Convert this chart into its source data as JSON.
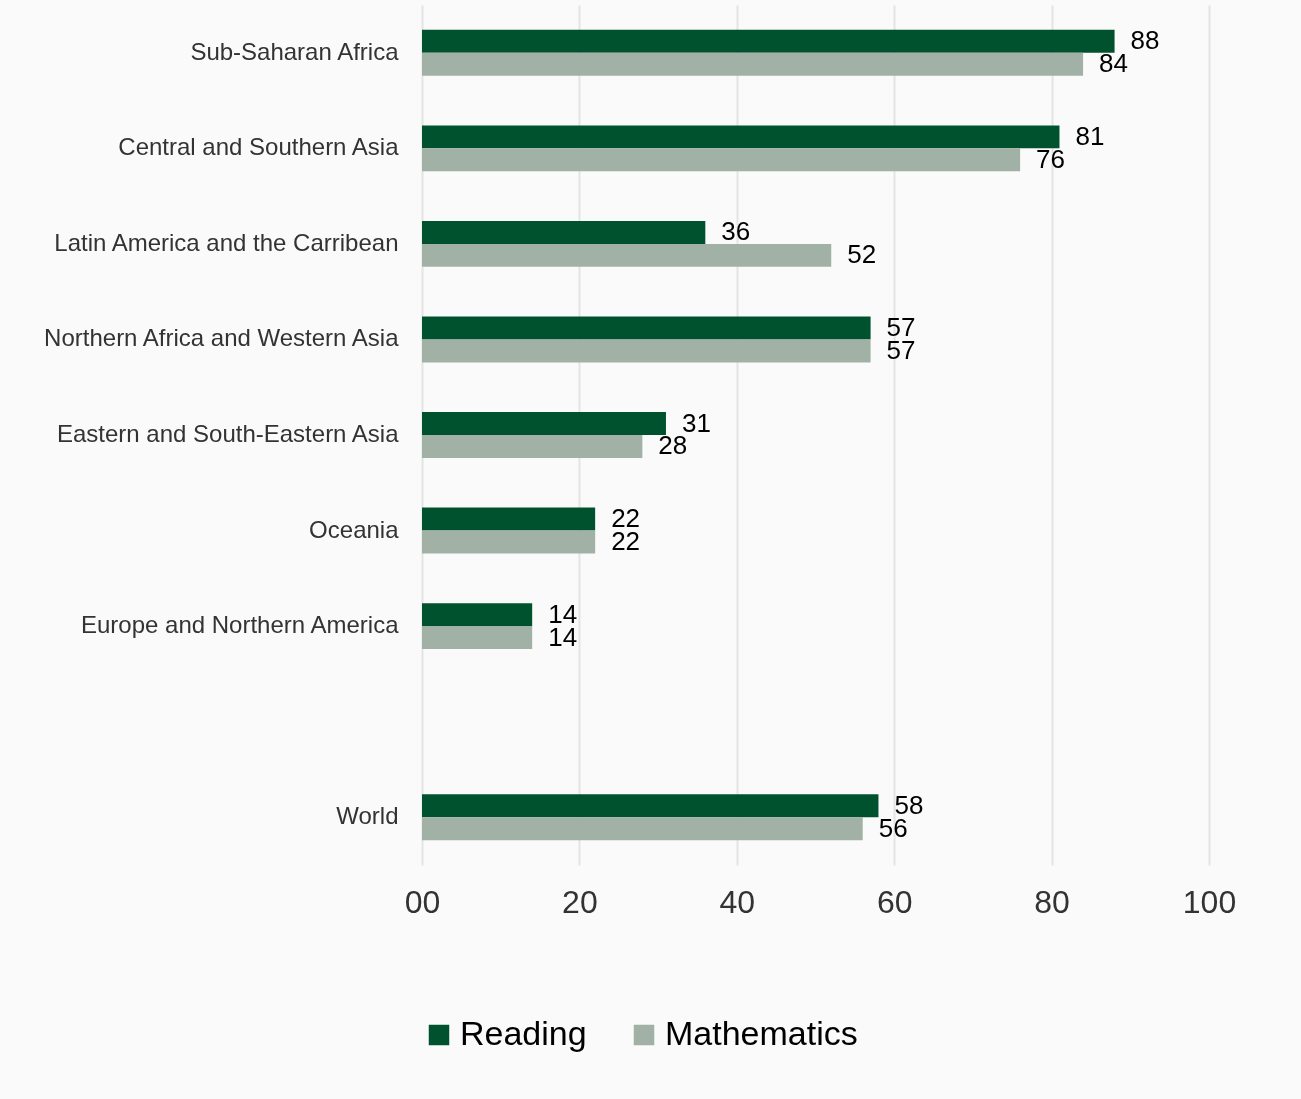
{
  "chart_data": {
    "type": "bar",
    "orientation": "horizontal",
    "categories": [
      "Sub-Saharan Africa",
      "Central and Southern Asia",
      "Latin America and the Carribean",
      "Northern Africa and Western Asia",
      "Eastern and South-Eastern Asia",
      "Oceania",
      "Europe and Northern America",
      null,
      "World"
    ],
    "series": [
      {
        "name": "Reading",
        "color": "#00522e",
        "values": [
          88,
          81,
          36,
          57,
          31,
          22,
          14,
          null,
          58
        ]
      },
      {
        "name": "Mathematics",
        "color": "#a2b1a5",
        "values": [
          84,
          76,
          52,
          57,
          28,
          22,
          14,
          null,
          56
        ]
      }
    ],
    "xlim": [
      0,
      100
    ],
    "xticks": [
      {
        "value": 0,
        "label": "00"
      },
      20,
      40,
      60,
      80,
      100
    ],
    "grid": "x",
    "legend": "bottom",
    "data_labels": true
  }
}
